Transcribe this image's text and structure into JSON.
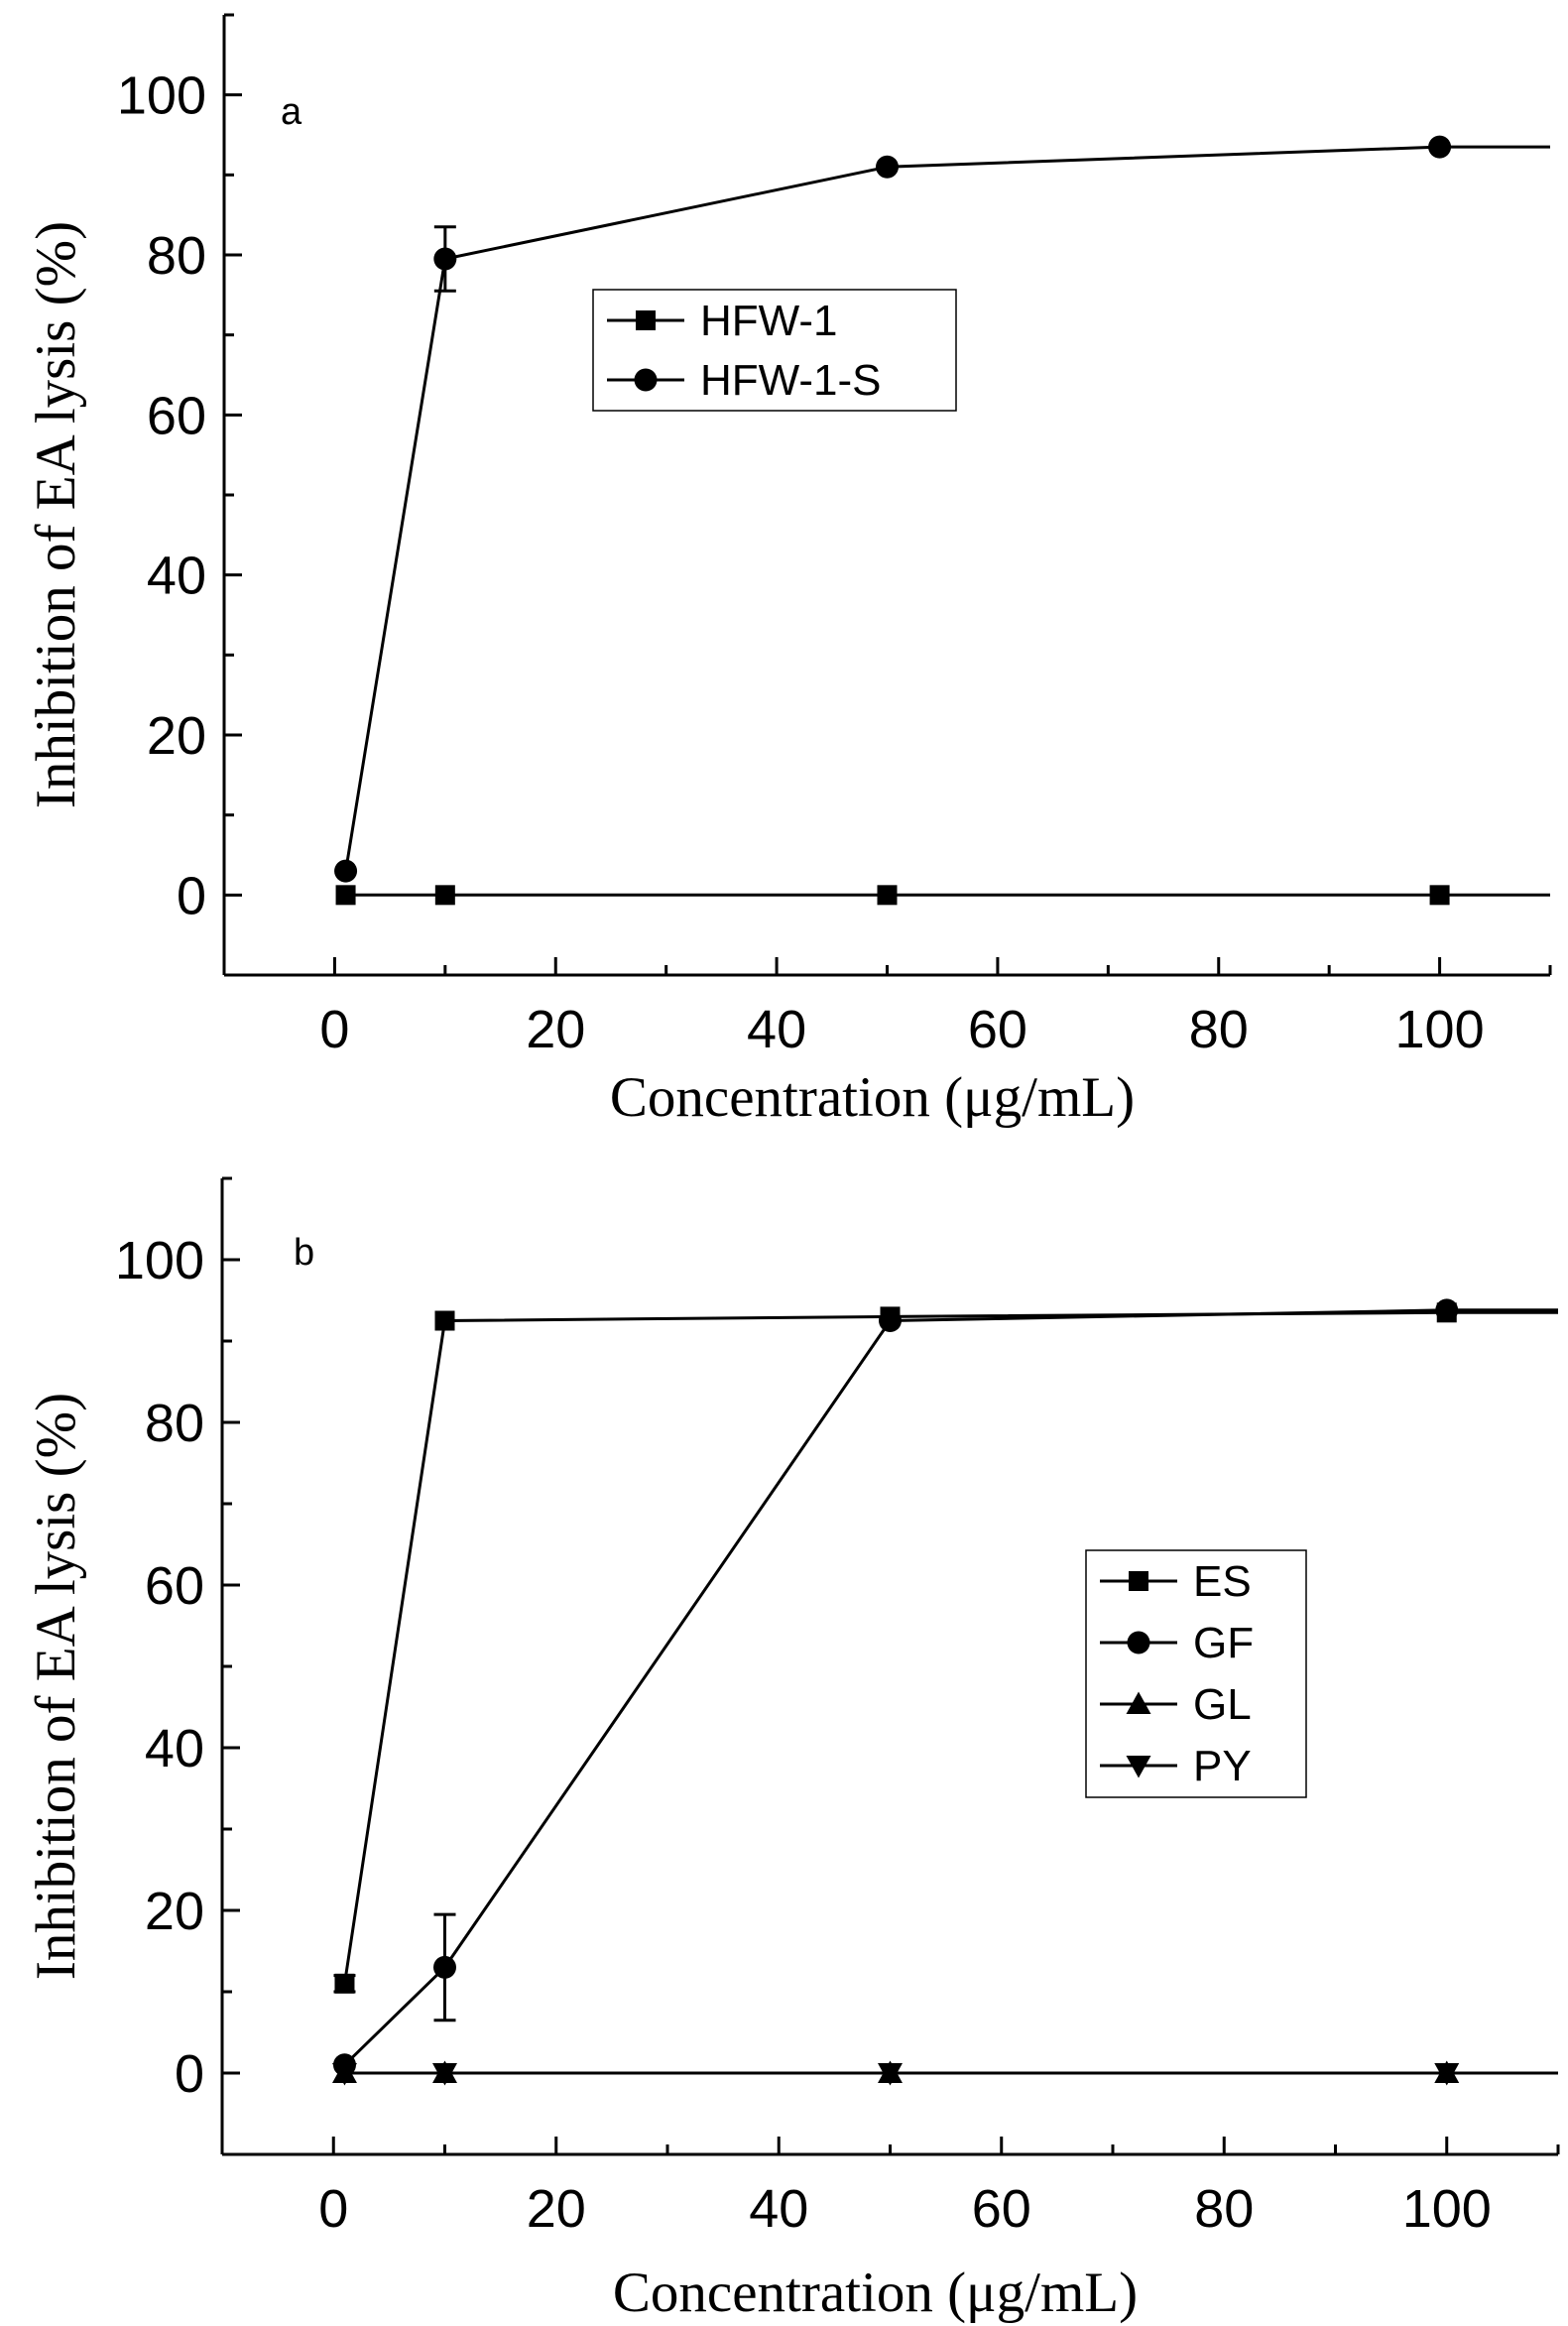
{
  "chart_data": [
    {
      "type": "line",
      "panel_label": "a",
      "xlabel": "Concentration (μg/mL)",
      "ylabel": "Inhibition of EA lysis (%)",
      "xlim": [
        -10,
        110
      ],
      "ylim": [
        -10,
        110
      ],
      "xticks": [
        0,
        20,
        40,
        60,
        80,
        100
      ],
      "yticks": [
        0,
        20,
        40,
        60,
        80,
        100
      ],
      "legend_position": "upper-center",
      "extends_to_axis_end": true,
      "series": [
        {
          "name": "HFW-1",
          "marker": "square",
          "x": [
            1,
            10,
            50,
            100
          ],
          "y": [
            0,
            0,
            0,
            0
          ],
          "err": [
            0,
            0,
            0,
            0
          ]
        },
        {
          "name": "HFW-1-S",
          "marker": "circle",
          "x": [
            1,
            10,
            50,
            100
          ],
          "y": [
            3,
            79.5,
            91,
            93.5
          ],
          "err": [
            0,
            4,
            0,
            0
          ]
        }
      ]
    },
    {
      "type": "line",
      "panel_label": "b",
      "xlabel": "Concentration (μg/mL)",
      "ylabel": "Inhibition of EA lysis (%)",
      "xlim": [
        -10,
        110
      ],
      "ylim": [
        -10,
        110
      ],
      "xticks": [
        0,
        20,
        40,
        60,
        80,
        100
      ],
      "yticks": [
        0,
        20,
        40,
        60,
        80,
        100
      ],
      "legend_position": "center-right",
      "extends_to_axis_end": true,
      "series": [
        {
          "name": "ES",
          "marker": "square",
          "x": [
            1,
            10,
            50,
            100
          ],
          "y": [
            11,
            92.5,
            93,
            93.5
          ],
          "err": [
            1,
            0,
            0,
            0
          ]
        },
        {
          "name": "GF",
          "marker": "circle",
          "x": [
            1,
            10,
            50,
            100
          ],
          "y": [
            1,
            13,
            92.5,
            93.8
          ],
          "err": [
            0,
            6.5,
            0,
            0
          ]
        },
        {
          "name": "GL",
          "marker": "triangle-up",
          "x": [
            1,
            10,
            50,
            100
          ],
          "y": [
            0,
            0,
            0,
            0
          ],
          "err": [
            0,
            0,
            0,
            0
          ]
        },
        {
          "name": "PY",
          "marker": "triangle-down",
          "x": [
            1,
            10,
            50,
            100
          ],
          "y": [
            0,
            0,
            0,
            0
          ],
          "err": [
            0,
            0,
            0,
            0
          ]
        }
      ]
    }
  ]
}
